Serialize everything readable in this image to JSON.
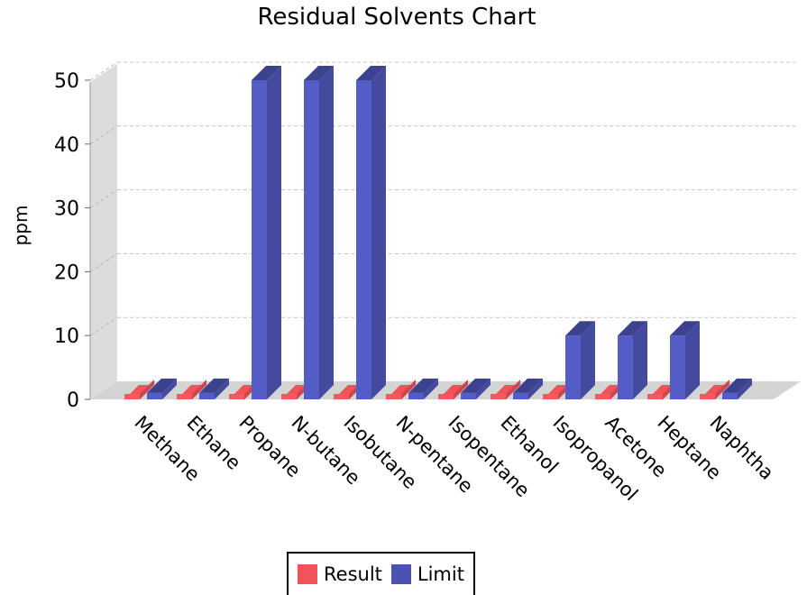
{
  "chart_data": {
    "type": "bar",
    "title": "Residual Solvents Chart",
    "xlabel": "",
    "ylabel": "ppm",
    "ylim": [
      0,
      52
    ],
    "yticks": [
      0,
      10,
      20,
      30,
      40,
      50
    ],
    "grid": true,
    "legend_position": "bottom",
    "categories": [
      "Methane",
      "Ethane",
      "Propane",
      "N-butane",
      "Isobutane",
      "N-pentane",
      "Isopentane",
      "Ethanol",
      "Isopropanol",
      "Acetone",
      "Heptane",
      "Naphtha"
    ],
    "series": [
      {
        "name": "Result",
        "color": "#f0535a",
        "values": [
          0,
          0,
          0,
          0,
          0,
          0,
          0,
          0,
          0,
          0,
          0,
          0
        ]
      },
      {
        "name": "Limit",
        "color": "#4b52b0",
        "values": [
          1,
          1,
          50,
          50,
          50,
          1,
          1,
          1,
          10,
          10,
          10,
          1
        ]
      }
    ]
  }
}
